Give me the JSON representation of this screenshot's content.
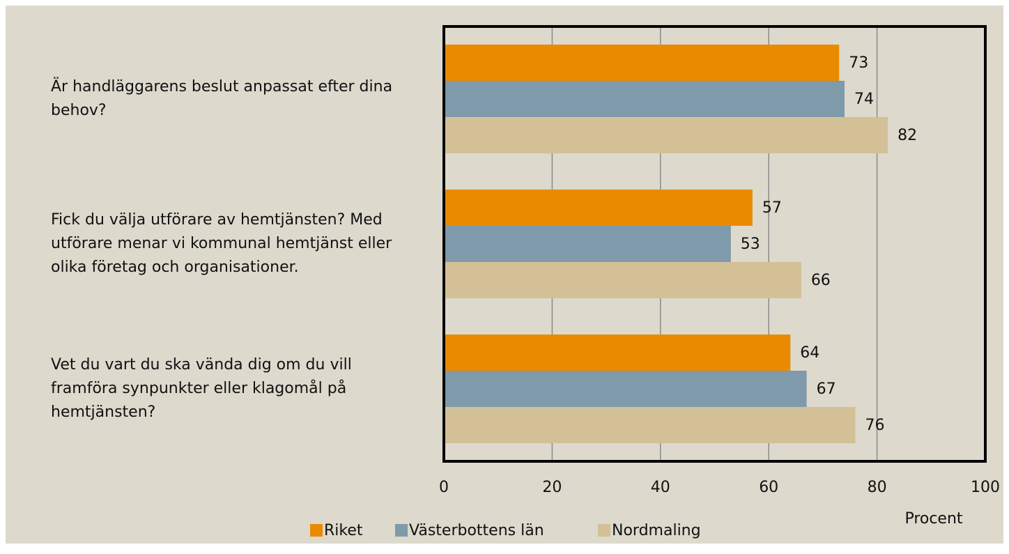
{
  "chart_data": {
    "type": "bar",
    "orientation": "horizontal",
    "categories": [
      "Är handläggarens beslut anpassat efter dina behov?",
      "Fick du välja utförare av hemtjänsten? Med utförare menar vi kommunal hemtjänst eller olika företag och organisationer.",
      "Vet du vart du ska vända dig om du vill framföra synpunkter eller klagomål på hemtjänsten?"
    ],
    "series": [
      {
        "name": "Riket",
        "color": "#ea8a00",
        "values": [
          73,
          57,
          64
        ]
      },
      {
        "name": "Västerbottens län",
        "color": "#7f9aab",
        "values": [
          74,
          53,
          67
        ]
      },
      {
        "name": "Nordmaling",
        "color": "#d4c096",
        "values": [
          82,
          66,
          76
        ]
      }
    ],
    "xlabel": "Procent",
    "xlim": [
      0,
      100
    ],
    "xticks": [
      0,
      20,
      40,
      60,
      80,
      100
    ],
    "grid": true,
    "legend": "bottom"
  }
}
